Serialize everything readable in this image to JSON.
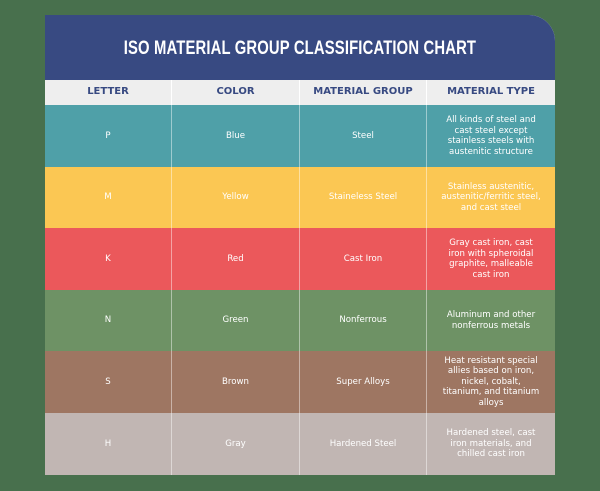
{
  "page": {
    "background_color": "#48704d"
  },
  "header": {
    "title": "ISO MATERIAL GROUP CLASSIFICATION CHART",
    "color": "#384a82"
  },
  "table": {
    "columns": [
      "LETTER",
      "COLOR",
      "MATERIAL GROUP",
      "MATERIAL TYPE"
    ],
    "rows": [
      {
        "letter": "P",
        "color": "Blue",
        "material_group": "Steel",
        "material_type": "All kinds of steel and cast steel except stainless steels with austenitic structure",
        "bg": "#4fa0a8"
      },
      {
        "letter": "M",
        "color": "Yellow",
        "material_group": "Staineless Steel",
        "material_type": "Stainless austenitic, austenitic/ferritic steel, and cast steel",
        "bg": "#fbc753"
      },
      {
        "letter": "K",
        "color": "Red",
        "material_group": "Cast Iron",
        "material_type": "Gray cast iron, cast iron with spheroidal graphite, malleable cast iron",
        "bg": "#eb585b"
      },
      {
        "letter": "N",
        "color": "Green",
        "material_group": "Nonferrous",
        "material_type": "Aluminum and other nonferrous metals",
        "bg": "#6e9265"
      },
      {
        "letter": "S",
        "color": "Brown",
        "material_group": "Super Alloys",
        "material_type": "Heat resistant special allies based on iron, nickel, cobalt, titanium, and titanium alloys",
        "bg": "#9e7662"
      },
      {
        "letter": "H",
        "color": "Gray",
        "material_group": "Hardened Steel",
        "material_type": "Hardened steel, cast iron materials, and chilled cast iron",
        "bg": "#c1b6b3"
      }
    ]
  }
}
